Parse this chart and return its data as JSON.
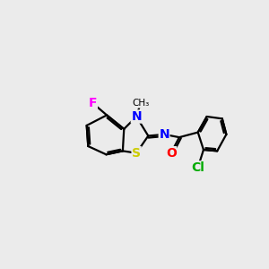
{
  "background_color": "#ebebeb",
  "bond_color": "#000000",
  "line_width": 1.6,
  "atoms": {
    "S": {
      "color": "#cccc00",
      "fontsize": 10
    },
    "N": {
      "color": "#0000ff",
      "fontsize": 10
    },
    "F": {
      "color": "#ff00ff",
      "fontsize": 10
    },
    "O": {
      "color": "#ff0000",
      "fontsize": 10
    },
    "Cl": {
      "color": "#00aa00",
      "fontsize": 10
    },
    "Me": {
      "color": "#000000",
      "fontsize": 8
    }
  },
  "figsize": [
    3.0,
    3.0
  ],
  "dpi": 100,
  "xlim": [
    0,
    10
  ],
  "ylim": [
    0,
    10
  ]
}
